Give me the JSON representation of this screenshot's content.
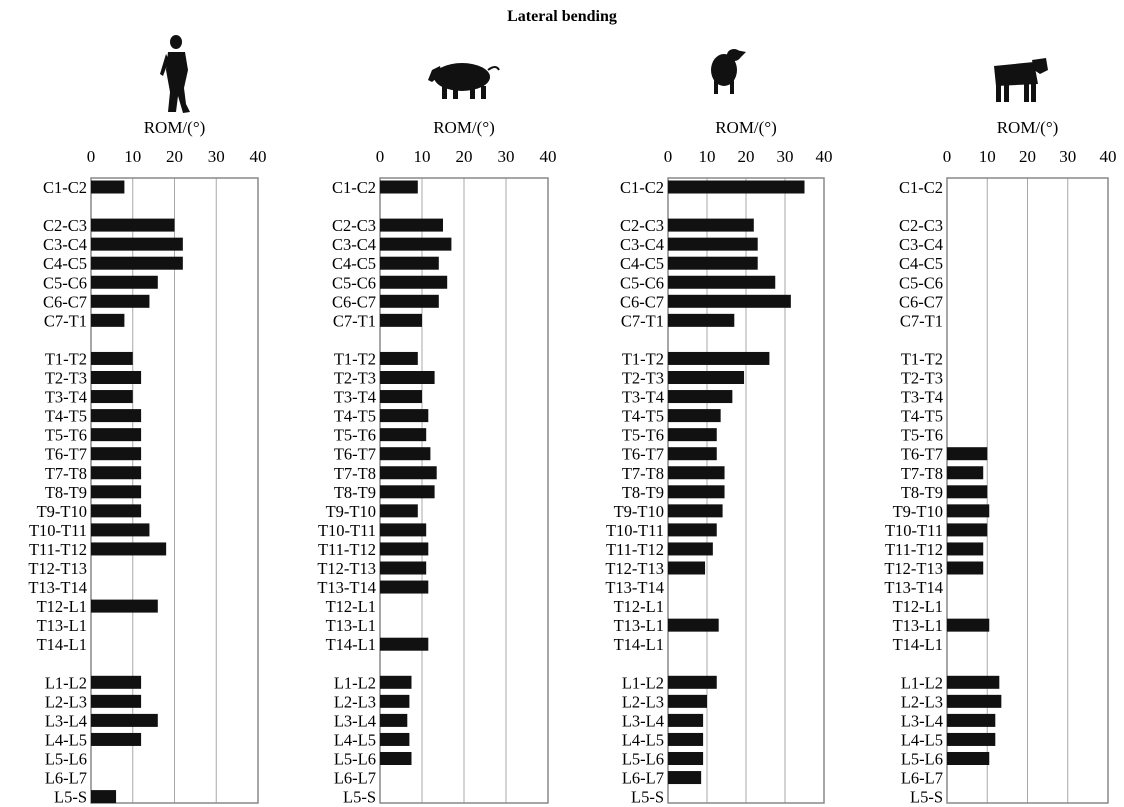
{
  "figure": {
    "title": "Lateral bending",
    "colors": {
      "bar": "#111111",
      "grid": "#a8a8a8",
      "frame": "#888888",
      "silhouette": "#111111"
    }
  },
  "chart_data": [
    {
      "type": "bar",
      "orientation": "horizontal",
      "icon": "human-silhouette-icon",
      "xlabel": "ROM/(°)",
      "xlim": [
        0,
        40
      ],
      "xticks": [
        "0",
        "10",
        "20",
        "30",
        "40"
      ],
      "grid": true,
      "categories": [
        "C1-C2",
        null,
        "C2-C3",
        "C3-C4",
        "C4-C5",
        "C5-C6",
        "C6-C7",
        "C7-T1",
        null,
        "T1-T2",
        "T2-T3",
        "T3-T4",
        "T4-T5",
        "T5-T6",
        "T6-T7",
        "T7-T8",
        "T8-T9",
        "T9-T10",
        "T10-T11",
        "T11-T12",
        "T12-T13",
        "T13-T14",
        "T12-L1",
        "T13-L1",
        "T14-L1",
        null,
        "L1-L2",
        "L2-L3",
        "L3-L4",
        "L4-L5",
        "L5-L6",
        "L6-L7",
        "L5-S"
      ],
      "values": [
        8,
        null,
        20,
        22,
        22,
        16,
        14,
        8,
        null,
        10,
        12,
        10,
        12,
        12,
        12,
        12,
        12,
        12,
        14,
        18,
        null,
        null,
        16,
        null,
        null,
        null,
        12,
        12,
        16,
        12,
        null,
        null,
        6
      ]
    },
    {
      "type": "bar",
      "orientation": "horizontal",
      "icon": "pig-silhouette-icon",
      "xlabel": "ROM/(°)",
      "xlim": [
        0,
        40
      ],
      "xticks": [
        "0",
        "10",
        "20",
        "30",
        "40"
      ],
      "grid": true,
      "categories": [
        "C1-C2",
        null,
        "C2-C3",
        "C3-C4",
        "C4-C5",
        "C5-C6",
        "C6-C7",
        "C7-T1",
        null,
        "T1-T2",
        "T2-T3",
        "T3-T4",
        "T4-T5",
        "T5-T6",
        "T6-T7",
        "T7-T8",
        "T8-T9",
        "T9-T10",
        "T10-T11",
        "T11-T12",
        "T12-T13",
        "T13-T14",
        "T12-L1",
        "T13-L1",
        "T14-L1",
        null,
        "L1-L2",
        "L2-L3",
        "L3-L4",
        "L4-L5",
        "L5-L6",
        "L6-L7",
        "L5-S"
      ],
      "values": [
        9,
        null,
        15,
        17,
        14,
        16,
        14,
        10,
        null,
        9,
        13,
        10,
        11.5,
        11,
        12,
        13.5,
        13,
        9,
        11,
        11.5,
        11,
        11.5,
        null,
        null,
        11.5,
        null,
        7.5,
        7,
        6.5,
        7,
        7.5,
        null,
        null
      ]
    },
    {
      "type": "bar",
      "orientation": "horizontal",
      "icon": "sheep-silhouette-icon",
      "xlabel": "ROM/(°)",
      "xlim": [
        0,
        40
      ],
      "xticks": [
        "0",
        "10",
        "20",
        "30",
        "40"
      ],
      "grid": true,
      "categories": [
        "C1-C2",
        null,
        "C2-C3",
        "C3-C4",
        "C4-C5",
        "C5-C6",
        "C6-C7",
        "C7-T1",
        null,
        "T1-T2",
        "T2-T3",
        "T3-T4",
        "T4-T5",
        "T5-T6",
        "T6-T7",
        "T7-T8",
        "T8-T9",
        "T9-T10",
        "T10-T11",
        "T11-T12",
        "T12-T13",
        "T13-T14",
        "T12-L1",
        "T13-L1",
        "T14-L1",
        null,
        "L1-L2",
        "L2-L3",
        "L3-L4",
        "L4-L5",
        "L5-L6",
        "L6-L7",
        "L5-S"
      ],
      "values": [
        35,
        null,
        22,
        23,
        23,
        27.5,
        31.5,
        17,
        null,
        26,
        19.5,
        16.5,
        13.5,
        12.5,
        12.5,
        14.5,
        14.5,
        14,
        12.5,
        11.5,
        9.5,
        null,
        null,
        13,
        null,
        null,
        12.5,
        10,
        9,
        9,
        9,
        8.5,
        null
      ]
    },
    {
      "type": "bar",
      "orientation": "horizontal",
      "icon": "cow-silhouette-icon",
      "xlabel": "ROM/(°)",
      "xlim": [
        0,
        40
      ],
      "xticks": [
        "0",
        "10",
        "20",
        "30",
        "40"
      ],
      "grid": true,
      "categories": [
        "C1-C2",
        null,
        "C2-C3",
        "C3-C4",
        "C4-C5",
        "C5-C6",
        "C6-C7",
        "C7-T1",
        null,
        "T1-T2",
        "T2-T3",
        "T3-T4",
        "T4-T5",
        "T5-T6",
        "T6-T7",
        "T7-T8",
        "T8-T9",
        "T9-T10",
        "T10-T11",
        "T11-T12",
        "T12-T13",
        "T13-T14",
        "T12-L1",
        "T13-L1",
        "T14-L1",
        null,
        "L1-L2",
        "L2-L3",
        "L3-L4",
        "L4-L5",
        "L5-L6",
        "L6-L7",
        "L5-S"
      ],
      "values": [
        null,
        null,
        null,
        null,
        null,
        null,
        null,
        null,
        null,
        null,
        null,
        null,
        null,
        null,
        10,
        9,
        10,
        10.5,
        10,
        9,
        9,
        null,
        null,
        10.5,
        null,
        null,
        13,
        13.5,
        12,
        12,
        10.5,
        null,
        null
      ]
    }
  ]
}
